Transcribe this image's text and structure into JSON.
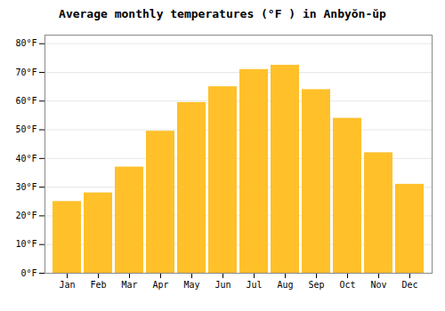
{
  "chart_data": {
    "type": "bar",
    "title": "Average monthly temperatures (°F ) in Anbyŏn-ŭp",
    "categories": [
      "Jan",
      "Feb",
      "Mar",
      "Apr",
      "May",
      "Jun",
      "Jul",
      "Aug",
      "Sep",
      "Oct",
      "Nov",
      "Dec"
    ],
    "values": [
      25.0,
      28.0,
      37.0,
      49.5,
      59.5,
      65.0,
      71.0,
      72.5,
      64.0,
      54.0,
      42.0,
      31.0
    ],
    "color": "#FFC02A",
    "ylim": [
      0,
      83
    ],
    "yticks": [
      {
        "value": 0,
        "label": "0°F"
      },
      {
        "value": 10,
        "label": "10°F"
      },
      {
        "value": 20,
        "label": "20°F"
      },
      {
        "value": 30,
        "label": "30°F"
      },
      {
        "value": 40,
        "label": "40°F"
      },
      {
        "value": 50,
        "label": "50°F"
      },
      {
        "value": 60,
        "label": "60°F"
      },
      {
        "value": 70,
        "label": "70°F"
      },
      {
        "value": 80,
        "label": "80°F"
      }
    ],
    "grid": true
  }
}
